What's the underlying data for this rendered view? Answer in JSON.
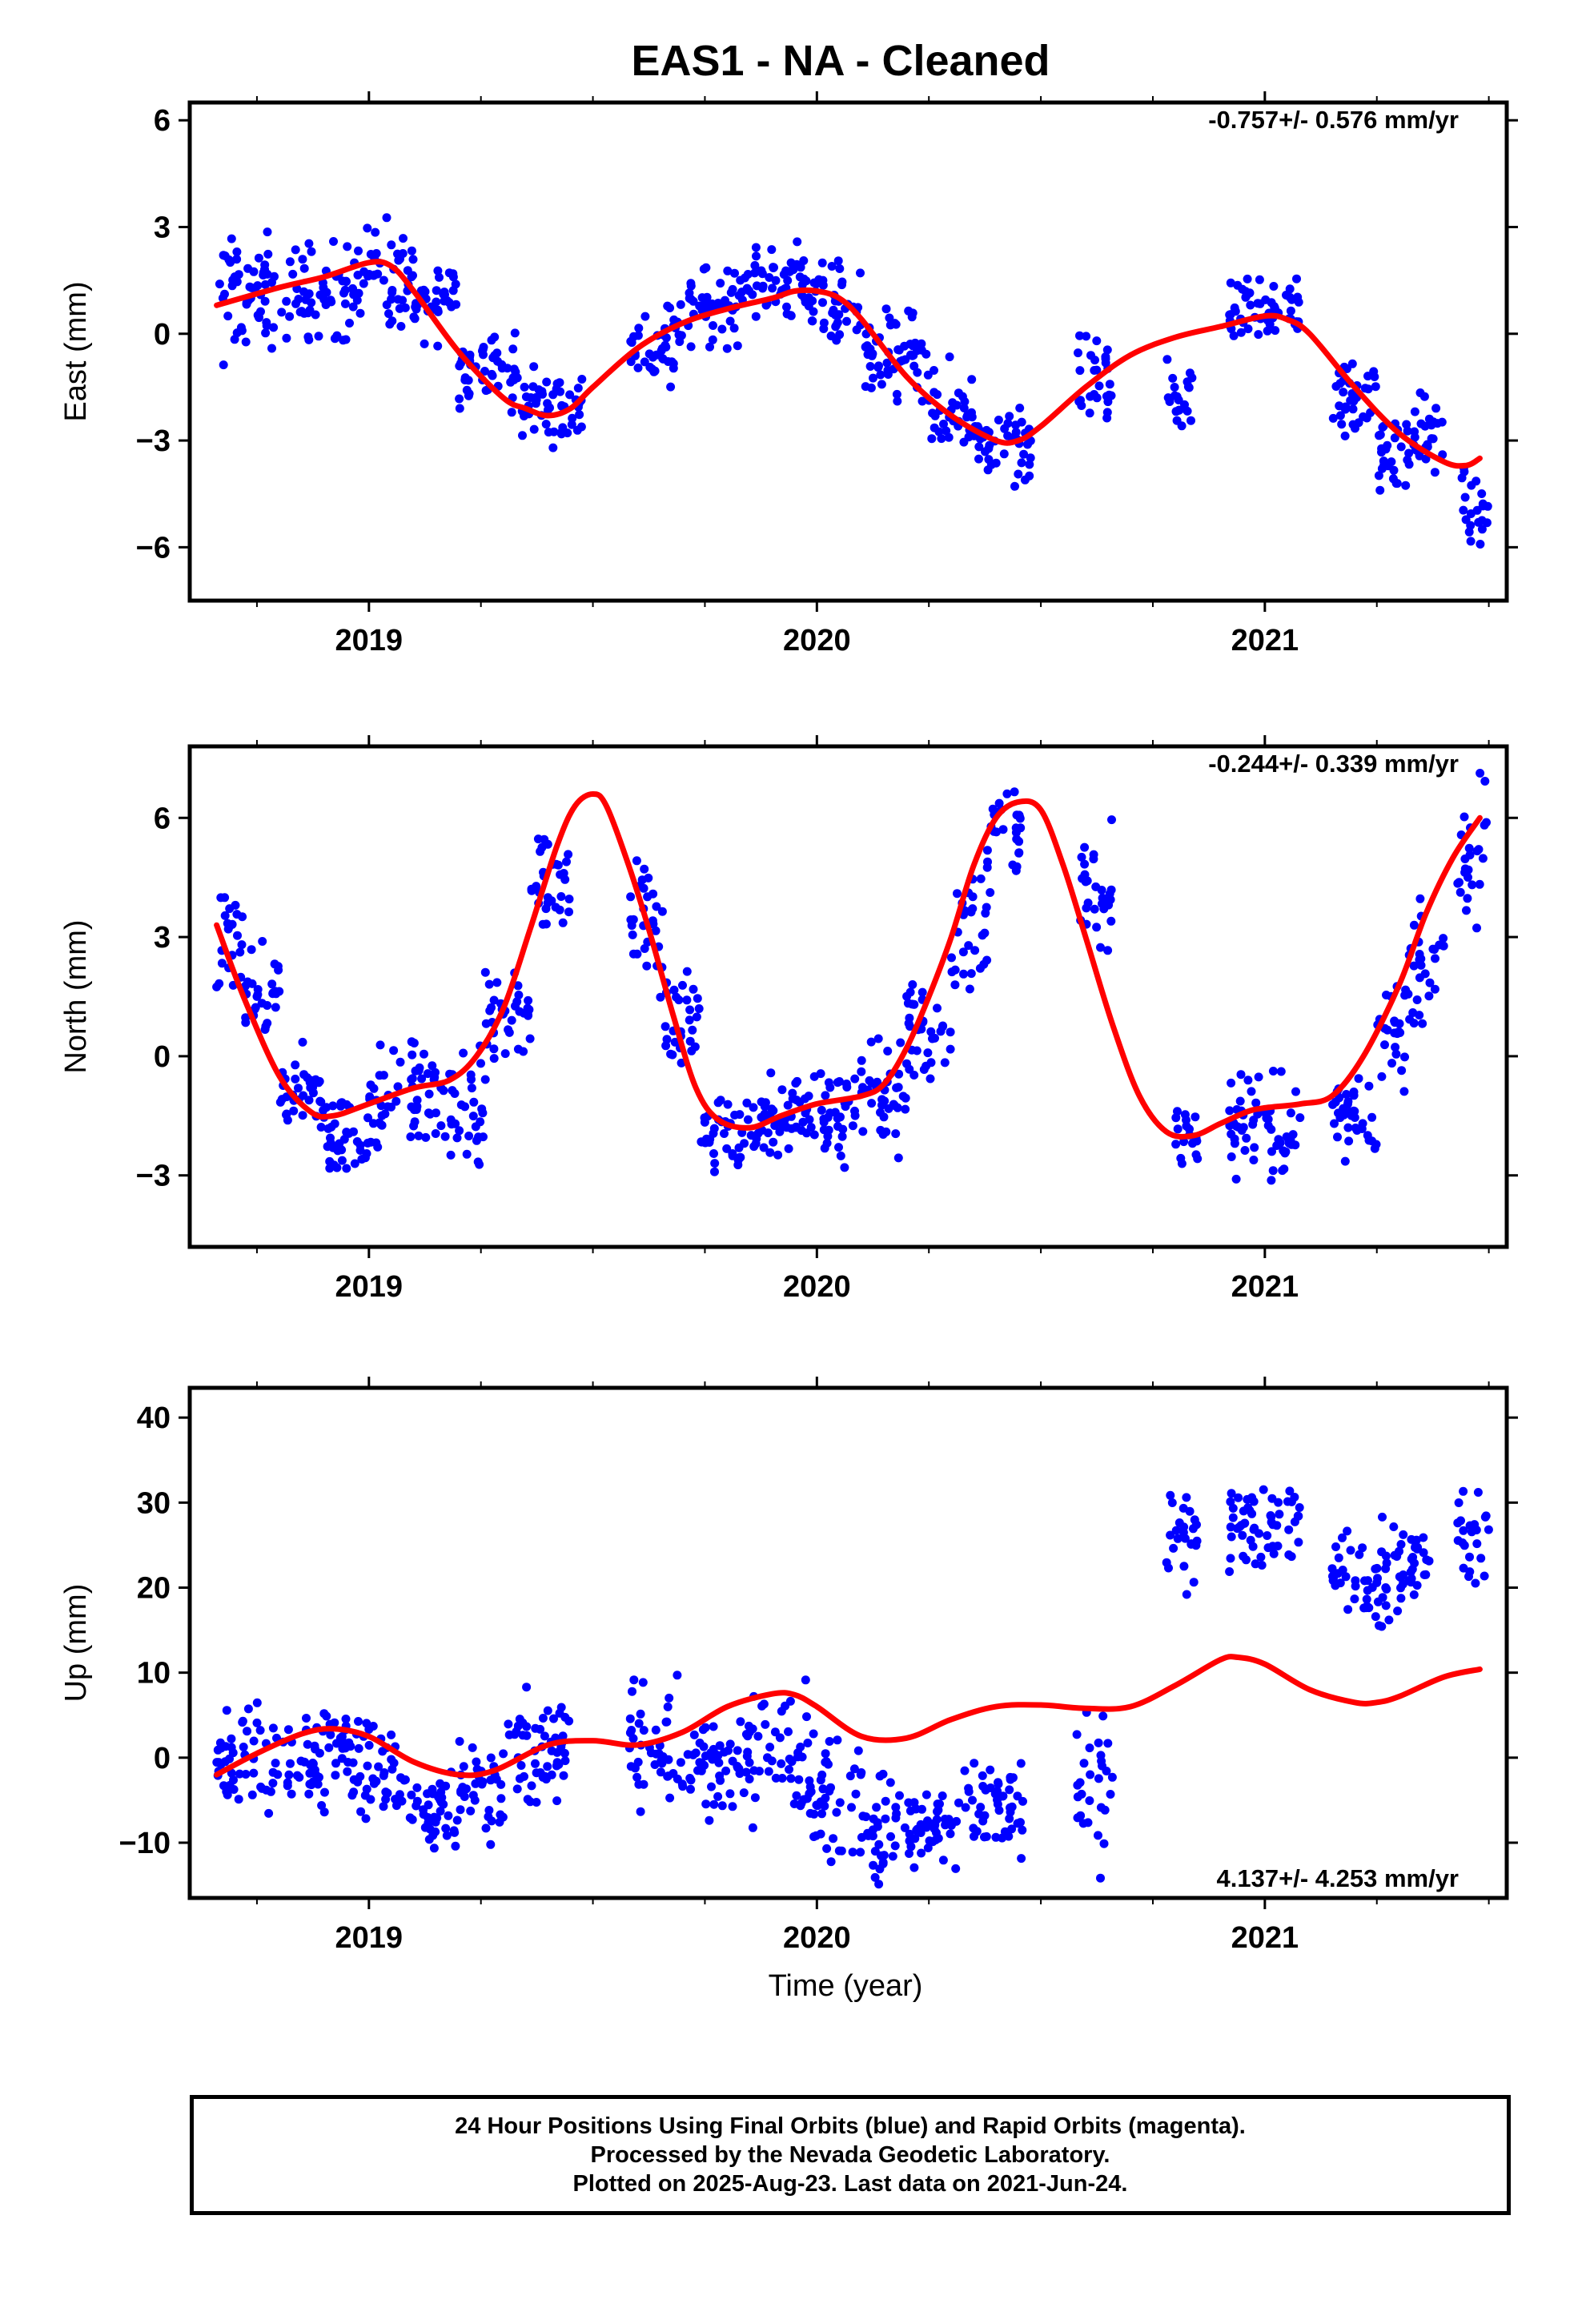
{
  "title": "EAS1  - NA - Cleaned",
  "xlabel": "Time (year)",
  "colors": {
    "points": "#0000ff",
    "fit": "#ff0000",
    "axes": "#000000"
  },
  "caption": {
    "line1": "24 Hour Positions Using Final Orbits (blue) and Rapid Orbits (magenta).",
    "line2": "Processed by the Nevada Geodetic Laboratory.",
    "line3": "Plotted on 2025-Aug-23. Last data on 2021-Jun-24."
  },
  "chart_data": [
    {
      "type": "scatter",
      "component": "east",
      "ylabel": "East (mm)",
      "rate": "-0.757+/- 0.576 mm/yr",
      "rate_position": "top-right",
      "xlim": [
        2018.6,
        2021.54
      ],
      "ylim": [
        -7.5,
        6.5
      ],
      "xticks": [
        2019,
        2020,
        2021
      ],
      "yticks": [
        -6,
        -3,
        0,
        3,
        6
      ],
      "fit": {
        "x": [
          2018.66,
          2018.8,
          2018.9,
          2019.0,
          2019.05,
          2019.1,
          2019.2,
          2019.3,
          2019.35,
          2019.4,
          2019.45,
          2019.5,
          2019.6,
          2019.7,
          2019.8,
          2019.9,
          2019.95,
          2020.0,
          2020.05,
          2020.1,
          2020.2,
          2020.3,
          2020.4,
          2020.45,
          2020.5,
          2020.6,
          2020.7,
          2020.8,
          2020.9,
          2021.0,
          2021.05,
          2021.1,
          2021.2,
          2021.3,
          2021.4,
          2021.45,
          2021.48
        ],
        "y": [
          0.8,
          1.3,
          1.6,
          2.0,
          1.9,
          1.2,
          -0.5,
          -1.8,
          -2.1,
          -2.3,
          -2.1,
          -1.5,
          -0.4,
          0.3,
          0.7,
          1.0,
          1.2,
          1.2,
          1.0,
          0.4,
          -1.2,
          -2.3,
          -3.0,
          -3.0,
          -2.6,
          -1.5,
          -0.6,
          -0.1,
          0.2,
          0.5,
          0.4,
          0.0,
          -1.5,
          -2.8,
          -3.6,
          -3.7,
          -3.5
        ]
      },
      "clusters": [
        [
          2018.66,
          2018.82,
          1.0,
          2.5
        ],
        [
          2018.82,
          2018.98,
          1.2,
          2.0
        ],
        [
          2018.98,
          2019.1,
          1.5,
          2.2
        ],
        [
          2019.1,
          2019.2,
          1.0,
          1.6
        ],
        [
          2019.2,
          2019.33,
          -1.0,
          1.6
        ],
        [
          2019.33,
          2019.48,
          -2.0,
          1.4
        ],
        [
          2019.58,
          2019.7,
          -0.2,
          1.6
        ],
        [
          2019.7,
          2019.84,
          0.8,
          1.6
        ],
        [
          2019.84,
          2019.98,
          1.5,
          1.4
        ],
        [
          2019.98,
          2020.1,
          0.8,
          1.6
        ],
        [
          2020.1,
          2020.25,
          -0.6,
          1.8
        ],
        [
          2020.25,
          2020.35,
          -2.2,
          1.8
        ],
        [
          2020.35,
          2020.48,
          -3.3,
          1.6
        ],
        [
          2020.58,
          2020.66,
          -1.4,
          1.8
        ],
        [
          2020.78,
          2020.84,
          -1.8,
          2.0
        ],
        [
          2020.92,
          2021.08,
          0.6,
          1.4
        ],
        [
          2021.15,
          2021.25,
          -1.8,
          1.8
        ],
        [
          2021.25,
          2021.33,
          -3.4,
          1.6
        ],
        [
          2021.33,
          2021.4,
          -2.8,
          1.6
        ],
        [
          2021.44,
          2021.5,
          -5.0,
          2.0
        ]
      ]
    },
    {
      "type": "scatter",
      "component": "north",
      "ylabel": "North (mm)",
      "rate": "-0.244+/- 0.339 mm/yr",
      "rate_position": "top-right",
      "xlim": [
        2018.6,
        2021.54
      ],
      "ylim": [
        -4.8,
        7.8
      ],
      "xticks": [
        2019,
        2020,
        2021
      ],
      "yticks": [
        -3,
        0,
        3,
        6
      ],
      "fit": {
        "x": [
          2018.66,
          2018.72,
          2018.8,
          2018.87,
          2018.92,
          2019.0,
          2019.1,
          2019.18,
          2019.24,
          2019.3,
          2019.36,
          2019.42,
          2019.46,
          2019.5,
          2019.53,
          2019.58,
          2019.63,
          2019.68,
          2019.73,
          2019.78,
          2019.85,
          2019.92,
          2020.0,
          2020.1,
          2020.15,
          2020.2,
          2020.25,
          2020.3,
          2020.35,
          2020.4,
          2020.45,
          2020.5,
          2020.55,
          2020.6,
          2020.66,
          2020.72,
          2020.78,
          2020.84,
          2020.9,
          2020.96,
          2021.0,
          2021.08,
          2021.15,
          2021.22,
          2021.3,
          2021.36,
          2021.42,
          2021.48
        ],
        "y": [
          3.3,
          1.5,
          -0.5,
          -1.4,
          -1.5,
          -1.2,
          -0.8,
          -0.6,
          0.0,
          1.2,
          3.2,
          5.3,
          6.3,
          6.6,
          6.3,
          4.8,
          3.0,
          1.0,
          -0.8,
          -1.6,
          -1.8,
          -1.5,
          -1.2,
          -1.0,
          -0.7,
          0.2,
          1.5,
          3.0,
          4.8,
          6.0,
          6.4,
          6.2,
          4.8,
          3.0,
          0.8,
          -1.0,
          -1.9,
          -2.0,
          -1.7,
          -1.4,
          -1.3,
          -1.2,
          -1.0,
          0.0,
          1.8,
          3.6,
          5.0,
          6.0
        ]
      },
      "clusters": [
        [
          2018.66,
          2018.72,
          3.0,
          2.2
        ],
        [
          2018.72,
          2018.8,
          1.5,
          1.6
        ],
        [
          2018.8,
          2018.9,
          -1.0,
          1.6
        ],
        [
          2018.9,
          2019.0,
          -2.0,
          1.6
        ],
        [
          2019.0,
          2019.16,
          -1.0,
          1.8
        ],
        [
          2019.16,
          2019.26,
          -1.2,
          2.4
        ],
        [
          2019.26,
          2019.36,
          1.2,
          2.2
        ],
        [
          2019.36,
          2019.45,
          4.5,
          2.2
        ],
        [
          2019.58,
          2019.66,
          3.2,
          2.4
        ],
        [
          2019.66,
          2019.74,
          0.8,
          2.4
        ],
        [
          2019.74,
          2019.84,
          -2.0,
          1.4
        ],
        [
          2019.84,
          2019.95,
          -1.6,
          1.6
        ],
        [
          2019.95,
          2020.08,
          -1.4,
          1.8
        ],
        [
          2020.08,
          2020.2,
          -1.0,
          1.8
        ],
        [
          2020.2,
          2020.3,
          0.6,
          2.4
        ],
        [
          2020.3,
          2020.38,
          3.2,
          2.4
        ],
        [
          2020.38,
          2020.46,
          5.6,
          2.0
        ],
        [
          2020.58,
          2020.66,
          4.0,
          2.4
        ],
        [
          2020.8,
          2020.85,
          -2.0,
          1.0
        ],
        [
          2020.92,
          2021.08,
          -1.8,
          1.8
        ],
        [
          2021.15,
          2021.25,
          -1.5,
          1.6
        ],
        [
          2021.25,
          2021.32,
          0.5,
          2.4
        ],
        [
          2021.32,
          2021.4,
          2.2,
          2.4
        ],
        [
          2021.43,
          2021.5,
          5.5,
          2.6
        ]
      ]
    },
    {
      "type": "scatter",
      "component": "up",
      "ylabel": "Up (mm)",
      "rate": "4.137+/- 4.253 mm/yr",
      "rate_position": "bottom-right",
      "xlim": [
        2018.6,
        2021.54
      ],
      "ylim": [
        -16.5,
        43.5
      ],
      "xticks": [
        2019,
        2020,
        2021
      ],
      "yticks": [
        -10,
        0,
        10,
        20,
        30,
        40
      ],
      "fit": {
        "x": [
          2018.66,
          2018.75,
          2018.85,
          2018.92,
          2019.0,
          2019.1,
          2019.2,
          2019.28,
          2019.4,
          2019.5,
          2019.6,
          2019.7,
          2019.8,
          2019.9,
          2019.95,
          2020.0,
          2020.1,
          2020.2,
          2020.3,
          2020.4,
          2020.5,
          2020.6,
          2020.7,
          2020.8,
          2020.9,
          2020.94,
          2021.0,
          2021.1,
          2021.2,
          2021.25,
          2021.3,
          2021.4,
          2021.48
        ],
        "y": [
          -2.0,
          0.5,
          2.8,
          3.4,
          2.5,
          -0.5,
          -2.0,
          -1.5,
          1.5,
          2.0,
          1.5,
          3.0,
          6.0,
          7.5,
          7.4,
          6.0,
          2.5,
          2.3,
          4.5,
          6.0,
          6.2,
          5.8,
          6.0,
          8.5,
          11.5,
          11.8,
          11.0,
          8.0,
          6.5,
          6.5,
          7.2,
          9.5,
          10.4
        ]
      },
      "clusters": [
        [
          2018.66,
          2018.8,
          0.0,
          9
        ],
        [
          2018.8,
          2018.98,
          0.5,
          9
        ],
        [
          2018.98,
          2019.08,
          -1.5,
          8
        ],
        [
          2019.08,
          2019.2,
          -6.5,
          9
        ],
        [
          2019.2,
          2019.3,
          -4.5,
          8
        ],
        [
          2019.3,
          2019.45,
          0.5,
          9
        ],
        [
          2019.58,
          2019.7,
          1.5,
          10
        ],
        [
          2019.7,
          2019.84,
          -1.5,
          10
        ],
        [
          2019.84,
          2019.98,
          0.5,
          11
        ],
        [
          2019.98,
          2020.1,
          -4.5,
          11
        ],
        [
          2020.1,
          2020.22,
          -8.5,
          9
        ],
        [
          2020.22,
          2020.32,
          -8.5,
          8
        ],
        [
          2020.32,
          2020.46,
          -5.5,
          9
        ],
        [
          2020.58,
          2020.66,
          -3.0,
          13
        ],
        [
          2020.78,
          2020.85,
          27,
          10
        ],
        [
          2020.92,
          2021.08,
          27,
          8
        ],
        [
          2021.15,
          2021.28,
          21,
          9
        ],
        [
          2021.28,
          2021.38,
          22,
          8
        ],
        [
          2021.43,
          2021.5,
          26,
          10
        ]
      ]
    }
  ]
}
